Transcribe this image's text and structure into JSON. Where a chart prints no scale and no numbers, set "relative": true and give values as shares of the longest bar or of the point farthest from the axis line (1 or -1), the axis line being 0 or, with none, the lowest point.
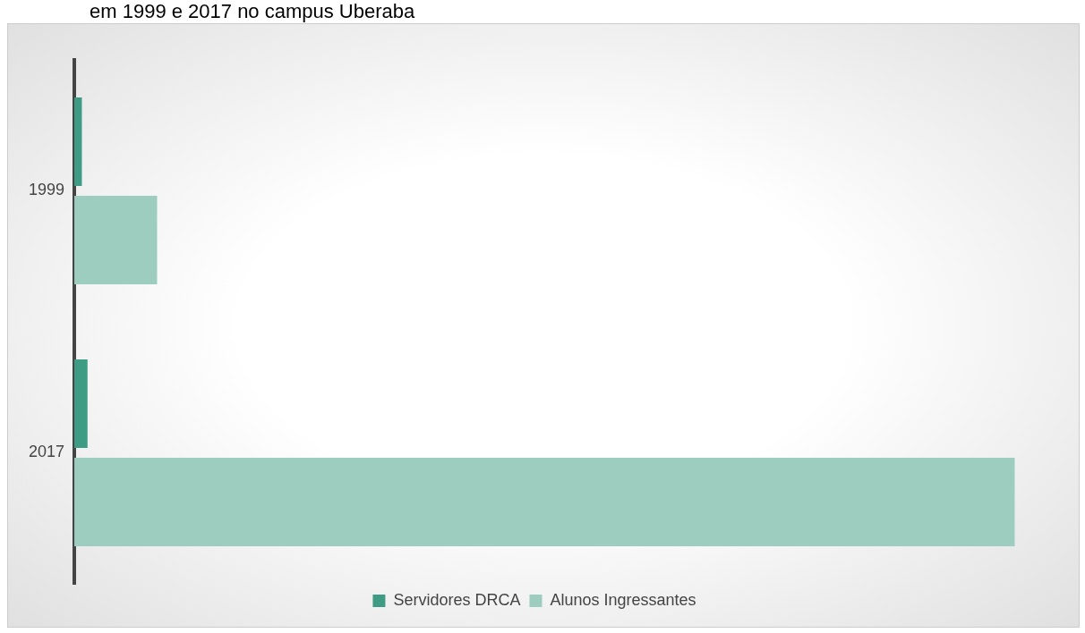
{
  "chart_data": {
    "type": "bar",
    "orientation": "horizontal",
    "relative": true,
    "title": "em 1999 e 2017 no campus Uberaba",
    "categories": [
      "1999",
      "2017"
    ],
    "series": [
      {
        "name": "Servidores DRCA",
        "color": "#3f9c84",
        "values": [
          0.008,
          0.014
        ]
      },
      {
        "name": "Alunos Ingressantes",
        "color": "#9ccdbf",
        "values": [
          0.088,
          1
        ]
      }
    ],
    "legend": "bottom"
  }
}
